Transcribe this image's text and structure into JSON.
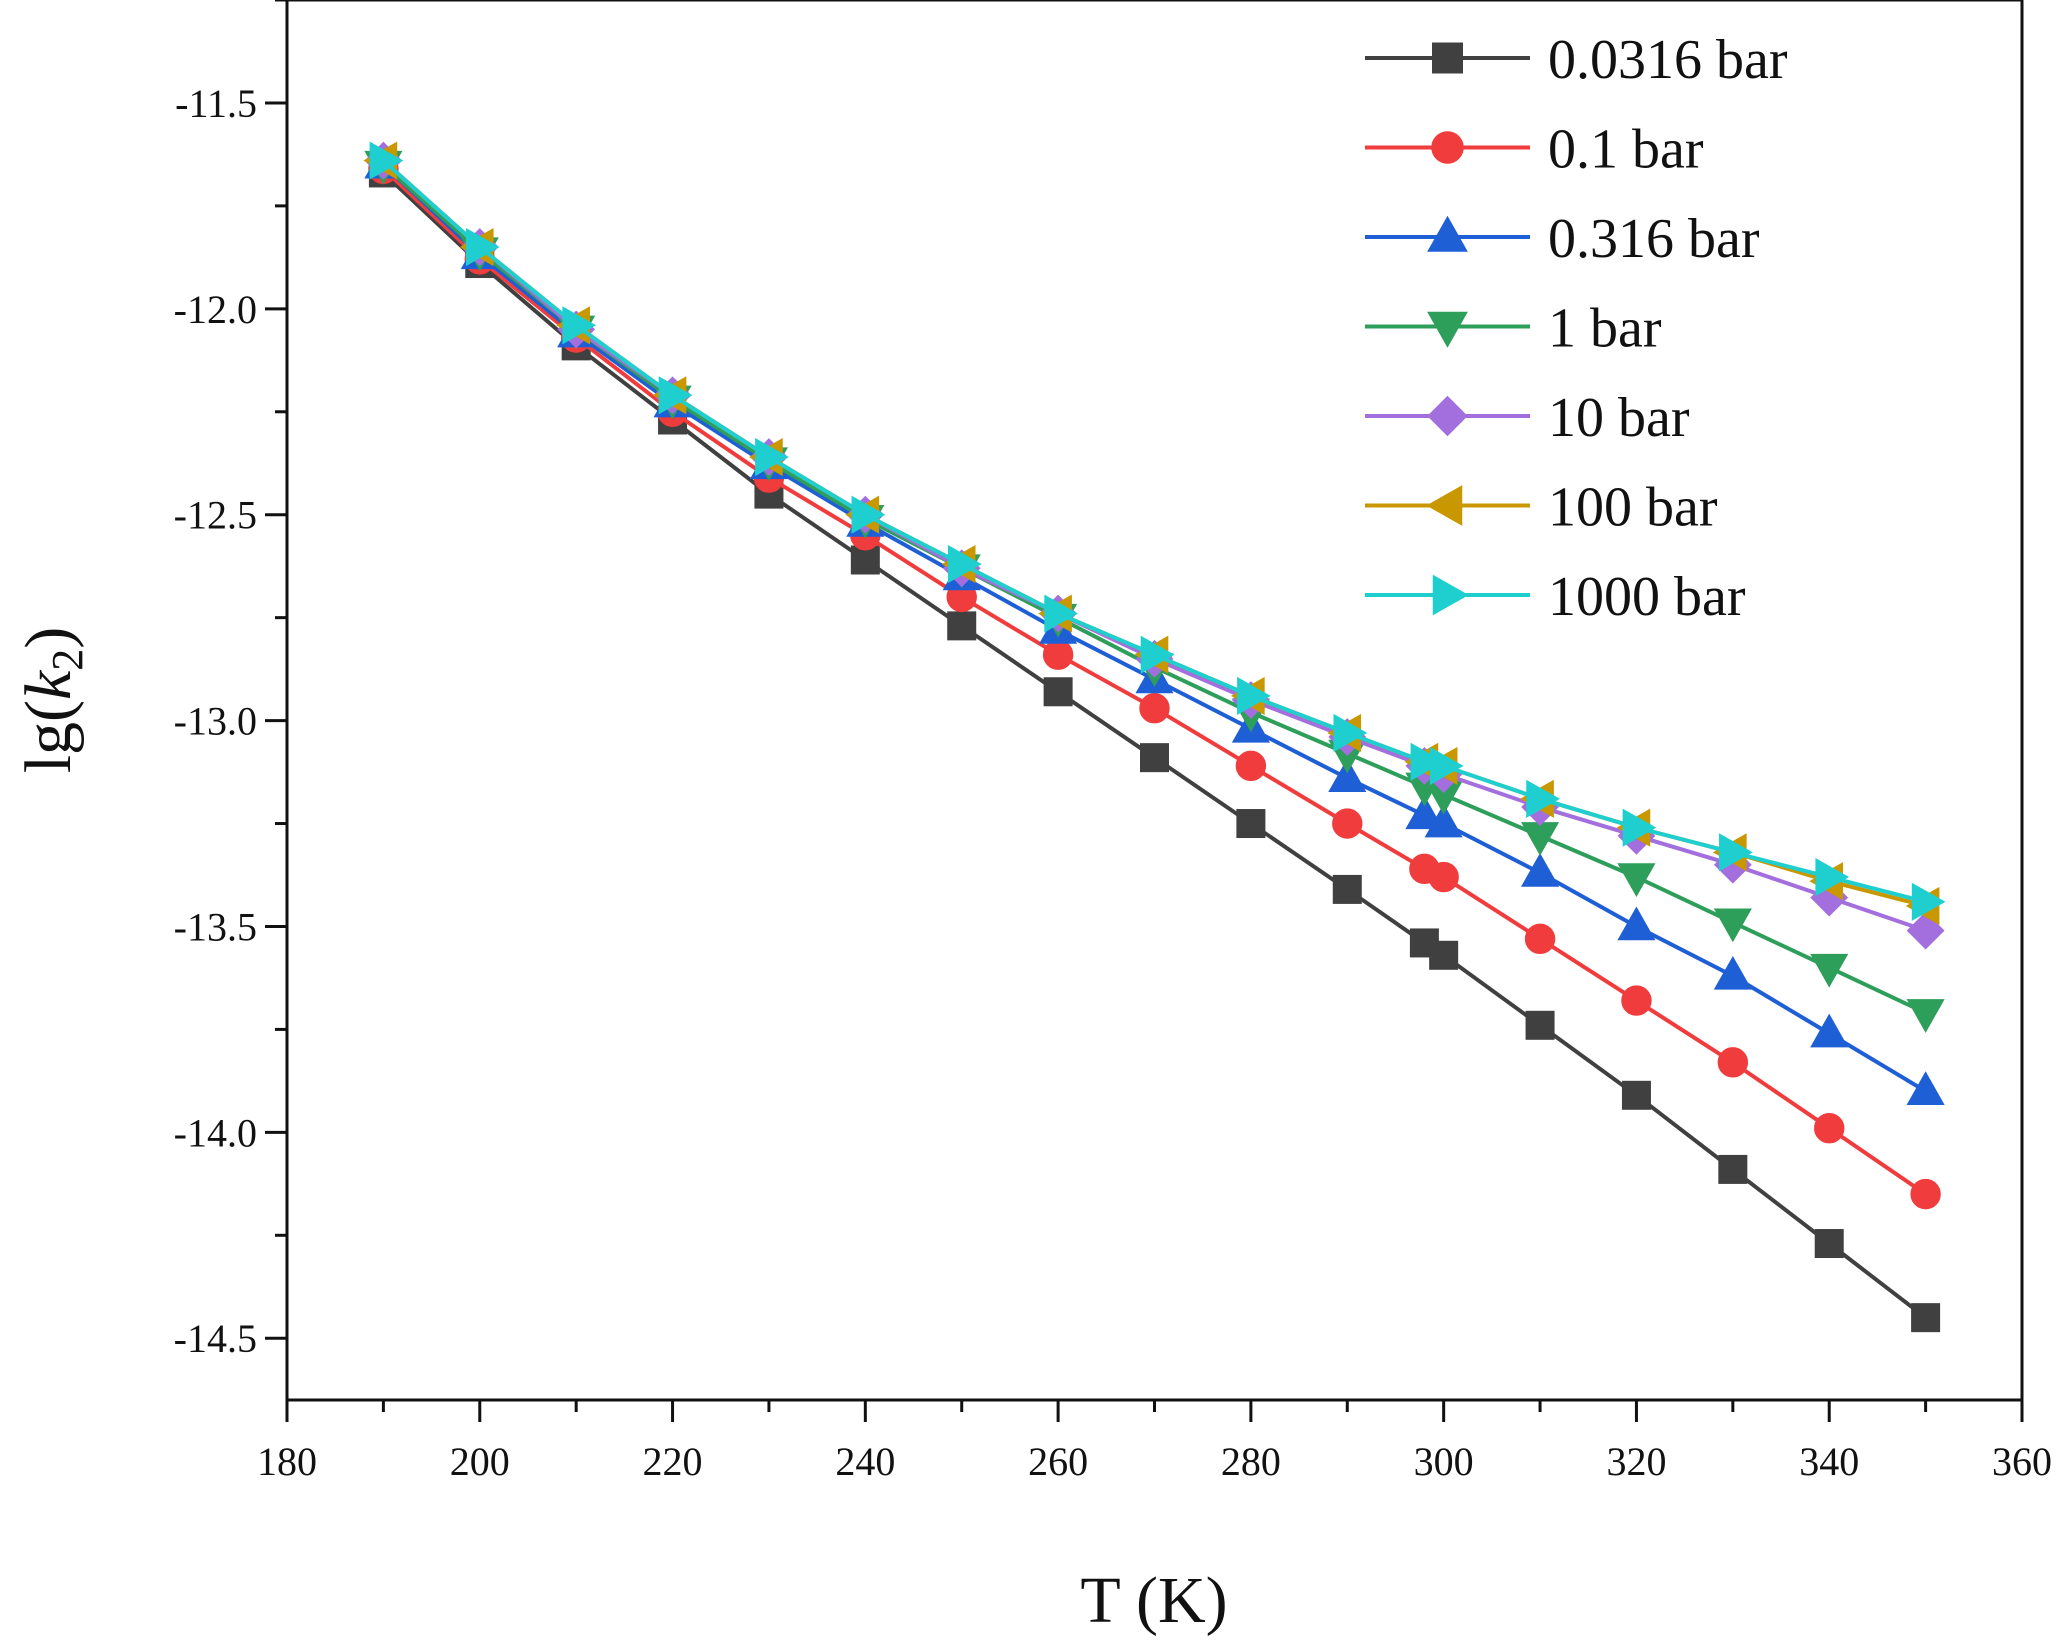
{
  "chart_data": {
    "type": "line",
    "title": "",
    "xlabel": "T (K)",
    "ylabel_main": "lg(",
    "ylabel_var": "k",
    "ylabel_sub": "2",
    "ylabel_close": ")",
    "xlim": [
      180,
      360
    ],
    "ylim": [
      -14.65,
      -11.25
    ],
    "xticks": [
      180,
      200,
      220,
      240,
      260,
      280,
      300,
      320,
      340,
      360
    ],
    "xtick_labels": [
      "180",
      "200",
      "220",
      "240",
      "260",
      "280",
      "300",
      "320",
      "340",
      "360"
    ],
    "yticks": [
      -11.5,
      -12.0,
      -12.5,
      -13.0,
      -13.5,
      -14.0,
      -14.5
    ],
    "ytick_labels": [
      "-11.5",
      "-12.0",
      "-12.5",
      "-13.0",
      "-13.5",
      "-14.0",
      "-14.5"
    ],
    "legend_position": "top-right",
    "x": [
      190,
      200,
      210,
      220,
      230,
      240,
      250,
      260,
      270,
      280,
      290,
      298,
      300,
      310,
      320,
      330,
      340,
      350
    ],
    "series": [
      {
        "name": "0.0316 bar",
        "color": "#404040",
        "marker": "square",
        "values": [
          -11.67,
          -11.89,
          -12.09,
          -12.27,
          -12.45,
          -12.61,
          -12.77,
          -12.93,
          -13.09,
          -13.25,
          -13.41,
          -13.54,
          -13.57,
          -13.74,
          -13.91,
          -14.09,
          -14.27,
          -14.45
        ]
      },
      {
        "name": "0.1 bar",
        "color": "#f03c3c",
        "marker": "circle",
        "values": [
          -11.66,
          -11.88,
          -12.07,
          -12.25,
          -12.41,
          -12.55,
          -12.7,
          -12.84,
          -12.97,
          -13.11,
          -13.25,
          -13.36,
          -13.38,
          -13.53,
          -13.68,
          -13.83,
          -13.99,
          -14.15
        ]
      },
      {
        "name": "0.316 bar",
        "color": "#1f5fd6",
        "marker": "triangle-up",
        "values": [
          -11.65,
          -11.87,
          -12.06,
          -12.23,
          -12.38,
          -12.52,
          -12.65,
          -12.78,
          -12.9,
          -13.02,
          -13.14,
          -13.23,
          -13.25,
          -13.37,
          -13.5,
          -13.62,
          -13.76,
          -13.9
        ]
      },
      {
        "name": "1 bar",
        "color": "#2e9e5b",
        "marker": "triangle-down",
        "values": [
          -11.65,
          -11.86,
          -12.05,
          -12.22,
          -12.37,
          -12.51,
          -12.63,
          -12.75,
          -12.87,
          -12.98,
          -13.08,
          -13.16,
          -13.18,
          -13.28,
          -13.38,
          -13.49,
          -13.6,
          -13.71
        ]
      },
      {
        "name": "10 bar",
        "color": "#a36ede",
        "marker": "diamond",
        "values": [
          -11.64,
          -11.85,
          -12.05,
          -12.21,
          -12.36,
          -12.5,
          -12.63,
          -12.74,
          -12.85,
          -12.95,
          -13.04,
          -13.11,
          -13.13,
          -13.21,
          -13.28,
          -13.35,
          -13.43,
          -13.51
        ]
      },
      {
        "name": "100 bar",
        "color": "#c99700",
        "marker": "triangle-left",
        "values": [
          -11.64,
          -11.85,
          -12.04,
          -12.21,
          -12.36,
          -12.5,
          -12.62,
          -12.74,
          -12.84,
          -12.94,
          -13.03,
          -13.1,
          -13.11,
          -13.19,
          -13.26,
          -13.32,
          -13.39,
          -13.45
        ]
      },
      {
        "name": "1000 bar",
        "color": "#1fcfcf",
        "marker": "triangle-right",
        "values": [
          -11.64,
          -11.85,
          -12.04,
          -12.21,
          -12.36,
          -12.5,
          -12.62,
          -12.74,
          -12.84,
          -12.94,
          -13.03,
          -13.1,
          -13.11,
          -13.19,
          -13.26,
          -13.32,
          -13.38,
          -13.44
        ]
      }
    ]
  }
}
